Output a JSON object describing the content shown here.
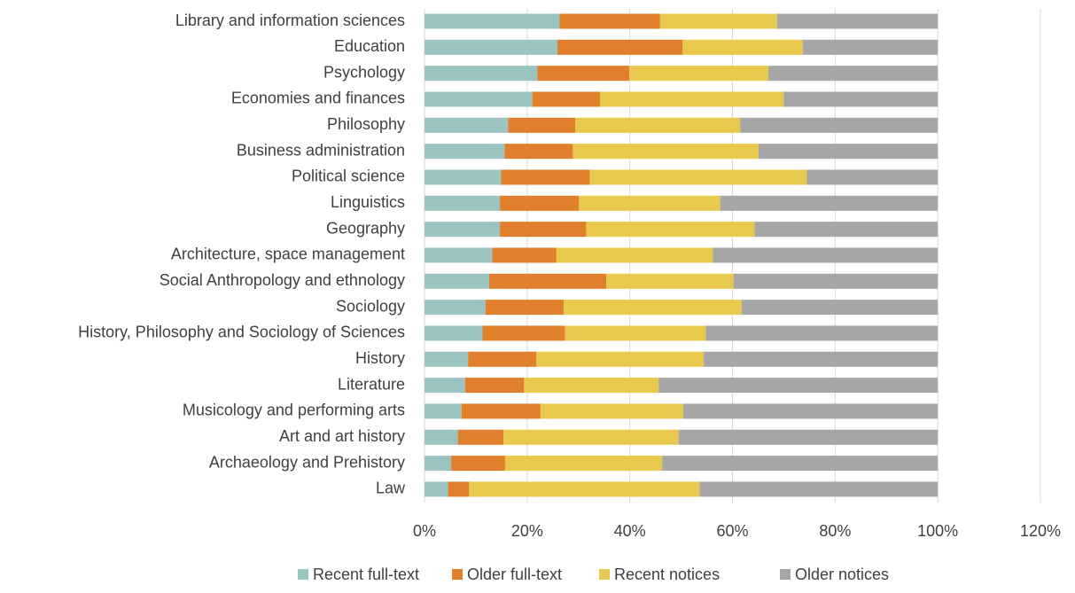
{
  "chart_data": {
    "type": "stacked_barh",
    "categories": [
      "Library and information sciences",
      "Education",
      "Psychology",
      "Economies and finances",
      "Philosophy",
      "Business administration",
      "Political science",
      "Linguistics",
      "Geography",
      "Architecture, space management",
      "Social Anthropology and ethnology",
      "Sociology",
      "History, Philosophy and Sociology of Sciences",
      "History",
      "Literature",
      "Musicology and performing arts",
      "Art and art history",
      "Archaeology and Prehistory",
      "Law"
    ],
    "series": [
      {
        "name": "Recent full-text",
        "color": "#9bc4c1",
        "values": [
          26.3,
          25.9,
          22.0,
          21.0,
          16.3,
          15.6,
          14.9,
          14.7,
          14.7,
          13.2,
          12.6,
          11.9,
          11.3,
          8.5,
          7.9,
          7.2,
          6.5,
          5.2,
          4.6
        ]
      },
      {
        "name": "Older full-text",
        "color": "#e07f2c",
        "values": [
          19.6,
          24.4,
          17.9,
          13.2,
          13.1,
          13.3,
          17.3,
          15.4,
          16.8,
          12.5,
          22.8,
          15.2,
          16.1,
          13.3,
          11.5,
          15.4,
          8.9,
          10.5,
          4.1
        ]
      },
      {
        "name": "Recent notices",
        "color": "#e9c84e",
        "values": [
          22.8,
          23.4,
          27.1,
          35.8,
          32.1,
          36.2,
          42.3,
          27.5,
          32.8,
          30.5,
          24.8,
          34.7,
          27.4,
          32.6,
          26.2,
          27.8,
          34.1,
          30.6,
          44.9
        ]
      },
      {
        "name": "Older notices",
        "color": "#a6a6a6",
        "values": [
          31.3,
          26.3,
          33.0,
          30.0,
          38.5,
          34.9,
          25.5,
          42.4,
          35.7,
          43.8,
          39.8,
          38.2,
          45.2,
          45.6,
          54.4,
          49.6,
          50.5,
          53.7,
          46.4
        ]
      }
    ],
    "xlim": [
      0,
      120
    ],
    "xticks": [
      {
        "value": 0,
        "label": "0%"
      },
      {
        "value": 20,
        "label": "20%"
      },
      {
        "value": 40,
        "label": "40%"
      },
      {
        "value": 60,
        "label": "60%"
      },
      {
        "value": 80,
        "label": "80%"
      },
      {
        "value": 100,
        "label": "100%"
      },
      {
        "value": 120,
        "label": "120%"
      }
    ],
    "grid": true,
    "legend": "bottom"
  }
}
